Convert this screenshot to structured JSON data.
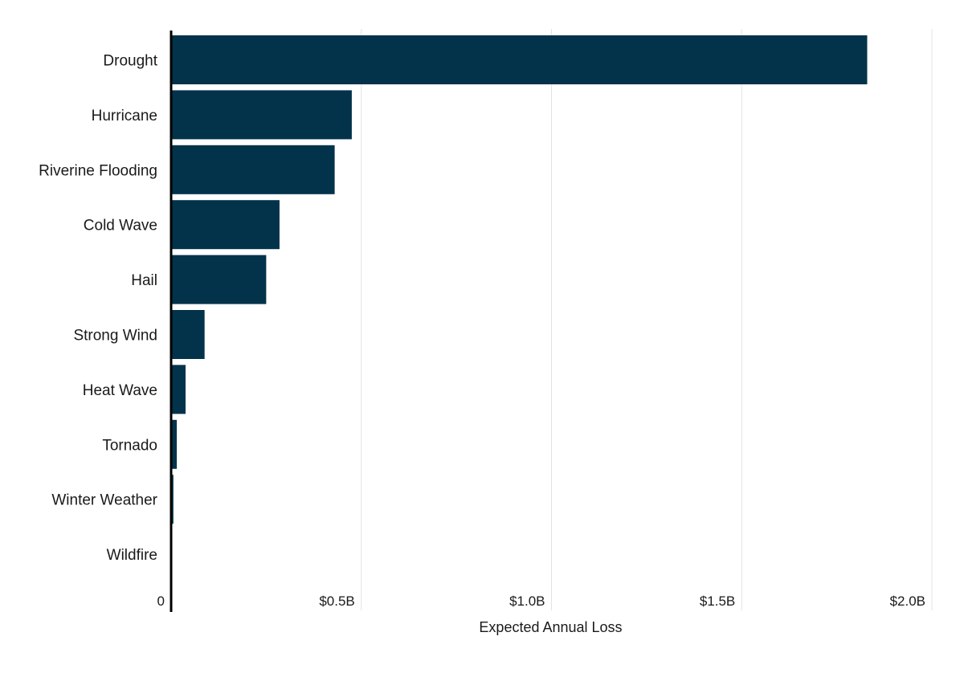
{
  "chart_data": {
    "type": "bar",
    "orientation": "horizontal",
    "categories": [
      "Drought",
      "Hurricane",
      "Riverine Flooding",
      "Cold Wave",
      "Hail",
      "Strong Wind",
      "Heat Wave",
      "Tornado",
      "Winter Weather",
      "Wildfire"
    ],
    "values": [
      1.83,
      0.475,
      0.43,
      0.285,
      0.25,
      0.088,
      0.038,
      0.015,
      0.006,
      0.002
    ],
    "value_unit": "billions USD",
    "xlabel": "Expected Annual Loss",
    "ylabel": "",
    "xlim": [
      0,
      2.0
    ],
    "x_ticks": [
      0,
      0.5,
      1.0,
      1.5,
      2.0
    ],
    "x_tick_labels": [
      "0",
      "$0.5B",
      "$1.0B",
      "$1.5B",
      "$2.0B"
    ],
    "grid": "vertical",
    "legend": "none",
    "colors": {
      "bar": "#03334a",
      "grid": "#e3e3e3",
      "axis": "#000000"
    }
  }
}
